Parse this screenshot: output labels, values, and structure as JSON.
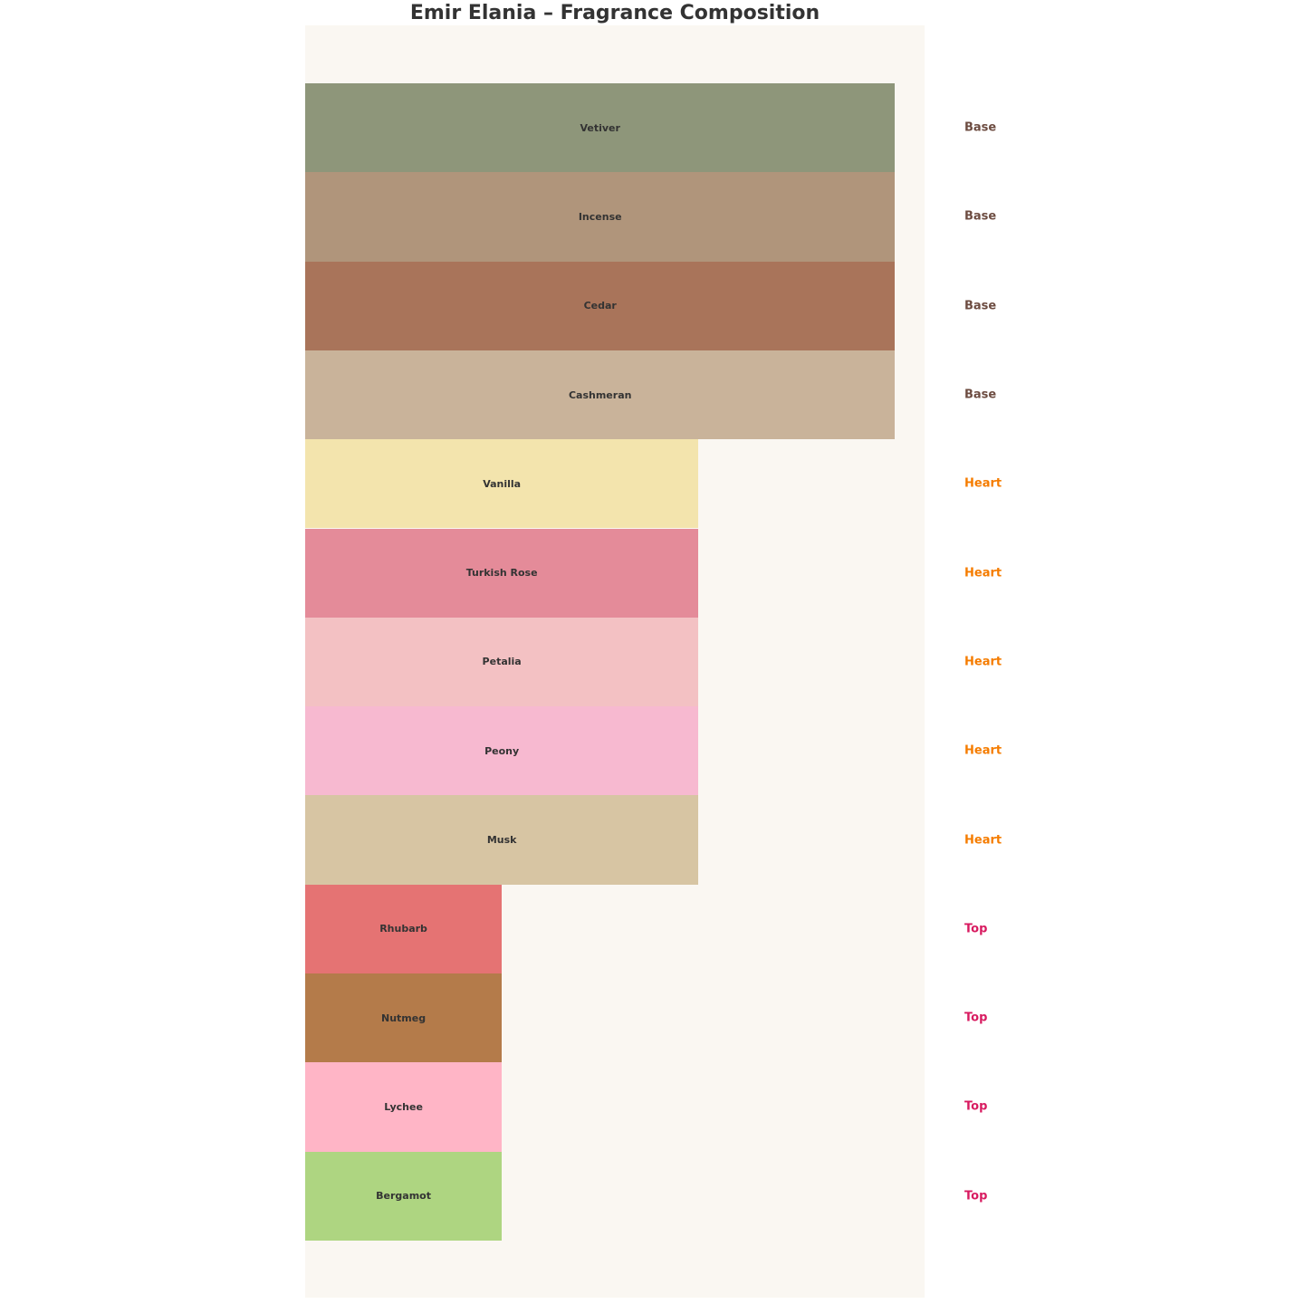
{
  "chart_data": {
    "type": "bar",
    "orientation": "horizontal",
    "title": "Emir Elania – Fragrance Composition",
    "xlabel": "",
    "ylabel": "",
    "grid": false,
    "axes_visible": false,
    "xlim": [
      0,
      3.15
    ],
    "categories": [
      "Vetiver",
      "Incense",
      "Cedar",
      "Cashmeran",
      "Vanilla",
      "Turkish Rose",
      "Petalia",
      "Peony",
      "Musk",
      "Rhubarb",
      "Nutmeg",
      "Lychee",
      "Bergamot"
    ],
    "values": [
      3,
      3,
      3,
      3,
      2,
      2,
      2,
      2,
      2,
      1,
      1,
      1,
      1
    ],
    "layers": [
      "Base",
      "Base",
      "Base",
      "Base",
      "Heart",
      "Heart",
      "Heart",
      "Heart",
      "Heart",
      "Top",
      "Top",
      "Top",
      "Top"
    ],
    "bar_colors": [
      "#8e967a",
      "#b0957b",
      "#a9745a",
      "#c9b39a",
      "#f3e4ad",
      "#e48b99",
      "#f3c1c3",
      "#f7b9d0",
      "#d7c5a3",
      "#e57373",
      "#b47b4a",
      "#ffb5c6",
      "#aed581"
    ],
    "layer_colors": {
      "Base": "#6d4c41",
      "Heart": "#f57c00",
      "Top": "#d81b60"
    }
  }
}
